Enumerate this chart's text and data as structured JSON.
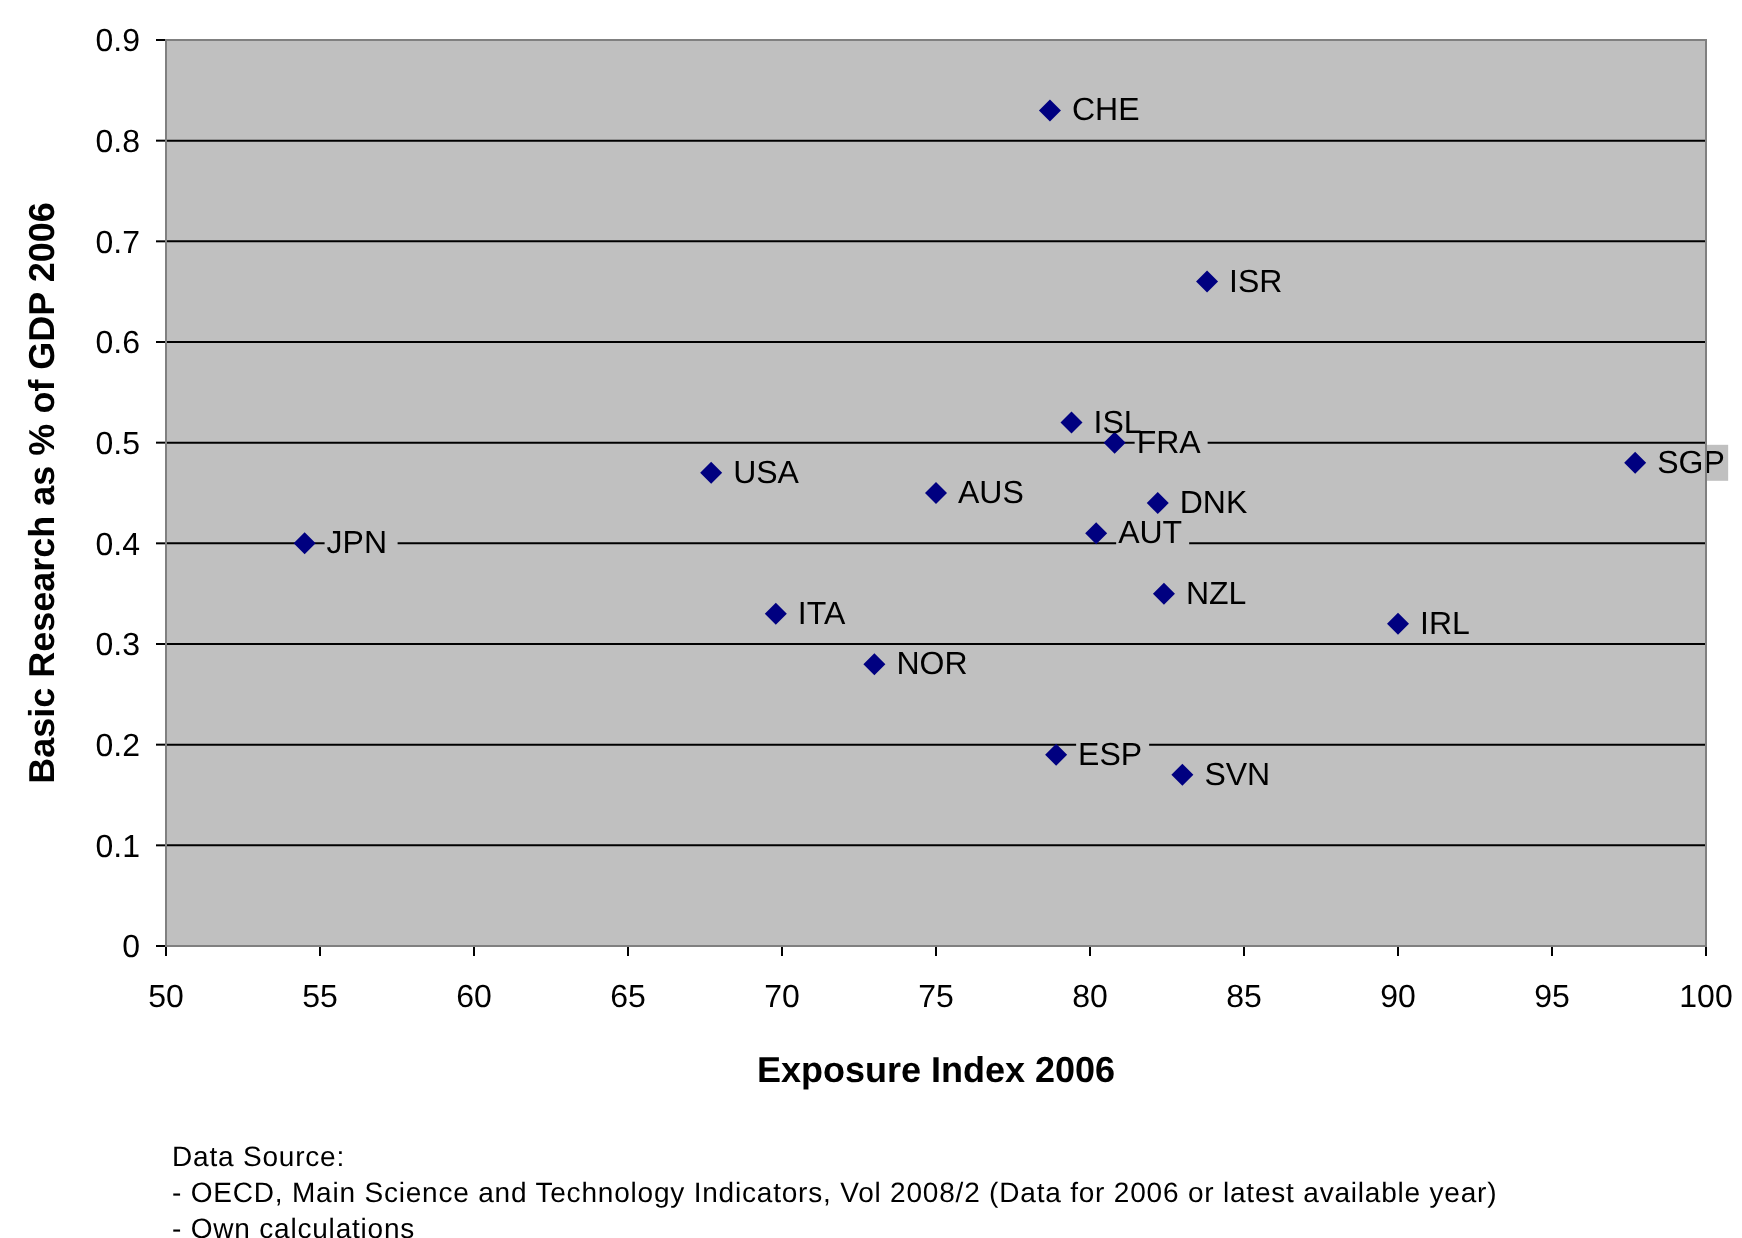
{
  "chart_data": {
    "type": "scatter",
    "xlabel": "Exposure Index 2006",
    "ylabel": "Basic Research as % of GDP 2006",
    "x": [
      78.7,
      83.8,
      79.4,
      80.8,
      97.7,
      67.7,
      75.0,
      82.2,
      80.2,
      54.5,
      82.4,
      69.8,
      90.0,
      73.0,
      78.9,
      83.0
    ],
    "values": [
      0.83,
      0.66,
      0.52,
      0.5,
      0.48,
      0.47,
      0.45,
      0.44,
      0.41,
      0.4,
      0.35,
      0.33,
      0.32,
      0.28,
      0.19,
      0.17
    ],
    "color": "#000080",
    "marker": "diamond",
    "grid": "y",
    "xlim": [
      50,
      100
    ],
    "xticks": [
      50,
      55,
      60,
      65,
      70,
      75,
      80,
      85,
      90,
      95,
      100
    ],
    "ylim": [
      0,
      0.9
    ],
    "yticks": [
      0,
      0.1,
      0.2,
      0.3,
      0.4,
      0.5,
      0.6,
      0.7,
      0.8,
      0.9
    ],
    "annotations": [
      {
        "text": "CHE",
        "x": 78.7,
        "y": 0.83
      },
      {
        "text": "ISR",
        "x": 83.8,
        "y": 0.66
      },
      {
        "text": "ISL",
        "x": 79.4,
        "y": 0.52
      },
      {
        "text": "FRA",
        "x": 80.8,
        "y": 0.5
      },
      {
        "text": "SGP",
        "x": 97.7,
        "y": 0.48
      },
      {
        "text": "USA",
        "x": 67.7,
        "y": 0.47
      },
      {
        "text": "AUS",
        "x": 75.0,
        "y": 0.45
      },
      {
        "text": "DNK",
        "x": 82.2,
        "y": 0.44
      },
      {
        "text": "AUT",
        "x": 80.2,
        "y": 0.41
      },
      {
        "text": "JPN",
        "x": 54.5,
        "y": 0.4
      },
      {
        "text": "NZL",
        "x": 82.4,
        "y": 0.35
      },
      {
        "text": "ITA",
        "x": 69.8,
        "y": 0.33
      },
      {
        "text": "IRL",
        "x": 90.0,
        "y": 0.32
      },
      {
        "text": "NOR",
        "x": 73.0,
        "y": 0.28
      },
      {
        "text": "ESP",
        "x": 78.9,
        "y": 0.19
      },
      {
        "text": "SVN",
        "x": 83.0,
        "y": 0.17
      },
      "Data Source:",
      "- OECD, Main Science and Technology Indicators, Vol 2008/2 (Data for 2006 or latest available year)",
      "- Own calculations"
    ]
  }
}
